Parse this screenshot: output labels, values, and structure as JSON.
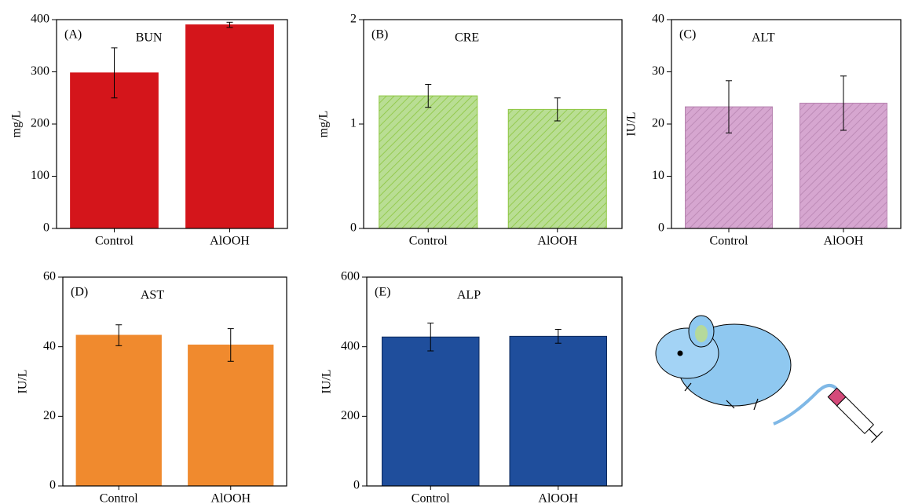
{
  "chart_data": [
    {
      "type": "bar",
      "panel_label": "(A)",
      "title": "BUN",
      "title_color": "#000000",
      "y_label": "mg/L",
      "categories": [
        "Control",
        "AlOOH"
      ],
      "values": [
        298,
        390
      ],
      "errors": [
        48,
        5
      ],
      "ylim": [
        0,
        400
      ],
      "yticks": [
        0,
        100,
        200,
        300,
        400
      ],
      "color": "#d4151b",
      "edge_color": "#d4151b",
      "hatch": false
    },
    {
      "type": "bar",
      "panel_label": "(B)",
      "title": "CRE",
      "title_color": "#8cc63f",
      "y_label": "mg/L",
      "categories": [
        "Control",
        "AlOOH"
      ],
      "values": [
        1.27,
        1.14
      ],
      "errors": [
        0.11,
        0.11
      ],
      "ylim": [
        0,
        2
      ],
      "yticks": [
        0,
        1,
        2
      ],
      "color": "#b9de94",
      "edge_color": "#8cc63f",
      "hatch": true
    },
    {
      "type": "bar",
      "panel_label": "(C)",
      "title": "ALT",
      "title_color": "#d9a8d3",
      "y_label": "IU/L",
      "categories": [
        "Control",
        "AlOOH"
      ],
      "values": [
        23.3,
        24
      ],
      "errors": [
        5,
        5.2
      ],
      "ylim": [
        0,
        40
      ],
      "yticks": [
        0,
        10,
        20,
        30,
        40
      ],
      "color": "#d6a6d0",
      "edge_color": "#b784b0",
      "hatch": true
    },
    {
      "type": "bar",
      "panel_label": "(D)",
      "title": "AST",
      "title_color": "#f08a2e",
      "y_label": "IU/L",
      "categories": [
        "Control",
        "AlOOH"
      ],
      "values": [
        43.3,
        40.5
      ],
      "errors": [
        3,
        4.7
      ],
      "ylim": [
        0,
        60
      ],
      "yticks": [
        0,
        20,
        40,
        60
      ],
      "color": "#f08a2e",
      "edge_color": "#f08a2e",
      "hatch": false
    },
    {
      "type": "bar",
      "panel_label": "(E)",
      "title": "ALP",
      "title_color": "#000000",
      "y_label": "IU/L",
      "categories": [
        "Control",
        "AlOOH"
      ],
      "values": [
        428,
        430
      ],
      "errors": [
        40,
        20
      ],
      "ylim": [
        0,
        600
      ],
      "yticks": [
        0,
        200,
        400,
        600
      ],
      "color": "#1f4e9c",
      "edge_color": "#0d2a5c",
      "hatch": false
    }
  ]
}
